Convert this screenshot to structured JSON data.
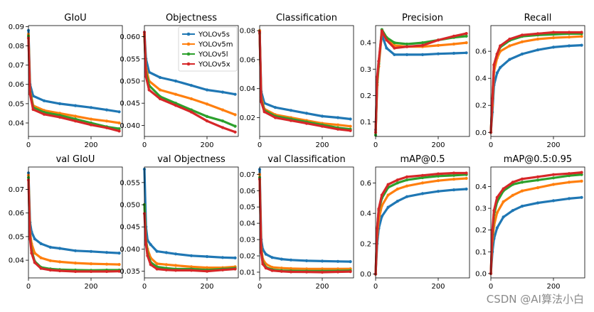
{
  "watermark": "CSDN @AI算法小白",
  "legend": {
    "placement": "upper-center",
    "panel": 1
  },
  "colors": {
    "YOLOv5s": "#1f77b4",
    "YOLOv5m": "#ff7f0e",
    "YOLOv5l": "#2ca02c",
    "YOLOv5x": "#d62728"
  },
  "chart_data": [
    {
      "type": "line",
      "title": "GIoU",
      "xlim": [
        0,
        300
      ],
      "ylim": [
        0.033,
        0.0905
      ],
      "xticks": [
        "0",
        "200"
      ],
      "yticks": [
        "0.04",
        "0.05",
        "0.06",
        "0.07",
        "0.08",
        "0.09"
      ],
      "x": [
        0,
        5,
        15,
        50,
        100,
        150,
        200,
        250,
        290
      ],
      "series": [
        {
          "name": "YOLOv5s",
          "values": [
            0.088,
            0.06,
            0.054,
            0.0515,
            0.05,
            0.049,
            0.048,
            0.0468,
            0.0458
          ]
        },
        {
          "name": "YOLOv5m",
          "values": [
            0.086,
            0.057,
            0.049,
            0.0465,
            0.045,
            0.0435,
            0.042,
            0.041,
            0.04
          ]
        },
        {
          "name": "YOLOv5l",
          "values": [
            0.085,
            0.056,
            0.048,
            0.0455,
            0.044,
            0.042,
            0.04,
            0.038,
            0.037
          ]
        },
        {
          "name": "YOLOv5x",
          "values": [
            0.084,
            0.055,
            0.047,
            0.0445,
            0.043,
            0.041,
            0.039,
            0.0375,
            0.0358
          ]
        }
      ]
    },
    {
      "type": "line",
      "title": "Objectness",
      "xlim": [
        0,
        300
      ],
      "ylim": [
        0.0375,
        0.0625
      ],
      "xticks": [
        "0",
        "200"
      ],
      "yticks": [
        "0.040",
        "0.045",
        "0.050",
        "0.055",
        "0.060"
      ],
      "x": [
        0,
        5,
        15,
        50,
        100,
        150,
        200,
        250,
        290
      ],
      "series": [
        {
          "name": "YOLOv5s",
          "values": [
            0.061,
            0.055,
            0.052,
            0.0508,
            0.05,
            0.049,
            0.048,
            0.0475,
            0.047
          ]
        },
        {
          "name": "YOLOv5m",
          "values": [
            0.0605,
            0.053,
            0.05,
            0.048,
            0.047,
            0.046,
            0.0448,
            0.0435,
            0.0424
          ]
        },
        {
          "name": "YOLOv5l",
          "values": [
            0.06,
            0.052,
            0.049,
            0.0465,
            0.045,
            0.0435,
            0.042,
            0.041,
            0.0398
          ]
        },
        {
          "name": "YOLOv5x",
          "values": [
            0.061,
            0.051,
            0.048,
            0.046,
            0.0445,
            0.043,
            0.041,
            0.0395,
            0.0385
          ]
        }
      ]
    },
    {
      "type": "line",
      "title": "Classification",
      "xlim": [
        0,
        300
      ],
      "ylim": [
        0.007,
        0.0835
      ],
      "xticks": [
        "0",
        "200"
      ],
      "yticks": [
        "0.02",
        "0.04",
        "0.06",
        "0.08"
      ],
      "x": [
        0,
        5,
        15,
        50,
        100,
        150,
        200,
        250,
        290
      ],
      "series": [
        {
          "name": "YOLOv5s",
          "values": [
            0.08,
            0.038,
            0.03,
            0.027,
            0.025,
            0.023,
            0.021,
            0.02,
            0.019
          ]
        },
        {
          "name": "YOLOv5m",
          "values": [
            0.08,
            0.034,
            0.026,
            0.022,
            0.02,
            0.018,
            0.016,
            0.015,
            0.014
          ]
        },
        {
          "name": "YOLOv5l",
          "values": [
            0.078,
            0.032,
            0.025,
            0.021,
            0.019,
            0.017,
            0.015,
            0.013,
            0.012
          ]
        },
        {
          "name": "YOLOv5x",
          "values": [
            0.079,
            0.031,
            0.024,
            0.02,
            0.018,
            0.016,
            0.014,
            0.012,
            0.011
          ]
        }
      ]
    },
    {
      "type": "line",
      "title": "Precision",
      "xlim": [
        0,
        300
      ],
      "ylim": [
        0.045,
        0.465
      ],
      "xticks": [
        "0",
        "200"
      ],
      "yticks": [
        "0.1",
        "0.2",
        "0.3",
        "0.4"
      ],
      "x": [
        0,
        5,
        10,
        20,
        35,
        60,
        100,
        150,
        200,
        250,
        290
      ],
      "series": [
        {
          "name": "YOLOv5s",
          "values": [
            0.07,
            0.26,
            0.33,
            0.43,
            0.38,
            0.355,
            0.355,
            0.355,
            0.358,
            0.36,
            0.362
          ]
        },
        {
          "name": "YOLOv5m",
          "values": [
            0.06,
            0.24,
            0.31,
            0.44,
            0.42,
            0.39,
            0.385,
            0.385,
            0.39,
            0.395,
            0.4
          ]
        },
        {
          "name": "YOLOv5l",
          "values": [
            0.05,
            0.25,
            0.32,
            0.45,
            0.42,
            0.4,
            0.395,
            0.4,
            0.41,
            0.42,
            0.425
          ]
        },
        {
          "name": "YOLOv5x",
          "values": [
            0.06,
            0.27,
            0.33,
            0.445,
            0.41,
            0.38,
            0.385,
            0.39,
            0.41,
            0.425,
            0.435
          ]
        }
      ]
    },
    {
      "type": "line",
      "title": "Recall",
      "xlim": [
        0,
        300
      ],
      "ylim": [
        -0.03,
        0.79
      ],
      "xticks": [
        "0",
        "200"
      ],
      "yticks": [
        "0.0",
        "0.2",
        "0.4",
        "0.6"
      ],
      "x": [
        0,
        5,
        10,
        20,
        30,
        60,
        100,
        150,
        200,
        250,
        290
      ],
      "series": [
        {
          "name": "YOLOv5s",
          "values": [
            0.0,
            0.15,
            0.35,
            0.44,
            0.48,
            0.54,
            0.58,
            0.61,
            0.63,
            0.64,
            0.645
          ]
        },
        {
          "name": "YOLOv5m",
          "values": [
            0.0,
            0.2,
            0.45,
            0.55,
            0.6,
            0.64,
            0.67,
            0.69,
            0.7,
            0.705,
            0.71
          ]
        },
        {
          "name": "YOLOv5l",
          "values": [
            0.0,
            0.25,
            0.5,
            0.58,
            0.63,
            0.68,
            0.71,
            0.72,
            0.725,
            0.73,
            0.73
          ]
        },
        {
          "name": "YOLOv5x",
          "values": [
            0.0,
            0.25,
            0.5,
            0.58,
            0.64,
            0.69,
            0.72,
            0.73,
            0.74,
            0.74,
            0.74
          ]
        }
      ]
    },
    {
      "type": "line",
      "title": "val GIoU",
      "xlim": [
        0,
        300
      ],
      "ylim": [
        0.0325,
        0.0795
      ],
      "xticks": [
        "0",
        "200"
      ],
      "yticks": [
        "0.04",
        "0.05",
        "0.06",
        "0.07"
      ],
      "x": [
        0,
        5,
        10,
        20,
        40,
        70,
        100,
        150,
        200,
        250,
        290
      ],
      "series": [
        {
          "name": "YOLOv5s",
          "values": [
            0.077,
            0.056,
            0.052,
            0.049,
            0.047,
            0.0455,
            0.045,
            0.044,
            0.0437,
            0.0433,
            0.043
          ]
        },
        {
          "name": "YOLOv5m",
          "values": [
            0.076,
            0.052,
            0.047,
            0.043,
            0.041,
            0.0398,
            0.0393,
            0.0388,
            0.0385,
            0.0383,
            0.0382
          ]
        },
        {
          "name": "YOLOv5l",
          "values": [
            0.075,
            0.05,
            0.044,
            0.0395,
            0.037,
            0.0363,
            0.036,
            0.0358,
            0.0357,
            0.0358,
            0.0358
          ]
        },
        {
          "name": "YOLOv5x",
          "values": [
            0.074,
            0.049,
            0.043,
            0.039,
            0.0365,
            0.0358,
            0.0355,
            0.0352,
            0.0352,
            0.0352,
            0.0353
          ]
        }
      ]
    },
    {
      "type": "line",
      "title": "val Objectness",
      "xlim": [
        0,
        300
      ],
      "ylim": [
        0.0335,
        0.0585
      ],
      "xticks": [
        "0",
        "200"
      ],
      "yticks": [
        "0.035",
        "0.040",
        "0.045",
        "0.050",
        "0.055"
      ],
      "x": [
        0,
        5,
        10,
        20,
        40,
        70,
        100,
        150,
        200,
        250,
        290
      ],
      "series": [
        {
          "name": "YOLOv5s",
          "values": [
            0.058,
            0.045,
            0.042,
            0.041,
            0.0395,
            0.0392,
            0.0389,
            0.0385,
            0.0383,
            0.0381,
            0.038
          ]
        },
        {
          "name": "YOLOv5m",
          "values": [
            0.05,
            0.042,
            0.04,
            0.038,
            0.0367,
            0.0365,
            0.0363,
            0.036,
            0.0358,
            0.0358,
            0.036
          ]
        },
        {
          "name": "YOLOv5l",
          "values": [
            0.05,
            0.042,
            0.039,
            0.037,
            0.036,
            0.0357,
            0.0355,
            0.0355,
            0.0353,
            0.0355,
            0.0357
          ]
        },
        {
          "name": "YOLOv5x",
          "values": [
            0.048,
            0.041,
            0.0385,
            0.0365,
            0.0355,
            0.0353,
            0.0352,
            0.0352,
            0.035,
            0.0353,
            0.0355
          ]
        }
      ]
    },
    {
      "type": "line",
      "title": "val Classification",
      "xlim": [
        0,
        300
      ],
      "ylim": [
        0.0065,
        0.0745
      ],
      "xticks": [
        "0",
        "200"
      ],
      "yticks": [
        "0.01",
        "0.02",
        "0.03",
        "0.04",
        "0.05",
        "0.06",
        "0.07"
      ],
      "x": [
        0,
        5,
        10,
        20,
        40,
        70,
        100,
        150,
        200,
        250,
        290
      ],
      "series": [
        {
          "name": "YOLOv5s",
          "values": [
            0.073,
            0.03,
            0.024,
            0.021,
            0.019,
            0.018,
            0.0175,
            0.017,
            0.0168,
            0.0166,
            0.0165
          ]
        },
        {
          "name": "YOLOv5m",
          "values": [
            0.07,
            0.025,
            0.018,
            0.015,
            0.013,
            0.0125,
            0.0122,
            0.012,
            0.012,
            0.012,
            0.0121
          ]
        },
        {
          "name": "YOLOv5l",
          "values": [
            0.068,
            0.023,
            0.016,
            0.013,
            0.0115,
            0.011,
            0.0108,
            0.0107,
            0.0107,
            0.0108,
            0.011
          ]
        },
        {
          "name": "YOLOv5x",
          "values": [
            0.067,
            0.022,
            0.015,
            0.0125,
            0.011,
            0.0105,
            0.0102,
            0.0101,
            0.01,
            0.0102,
            0.0104
          ]
        }
      ]
    },
    {
      "type": "line",
      "title": "mAP@0.5",
      "xlim": [
        0,
        300
      ],
      "ylim": [
        -0.025,
        0.705
      ],
      "xticks": [
        "0",
        "200"
      ],
      "yticks": [
        "0.0",
        "0.2",
        "0.4",
        "0.6"
      ],
      "x": [
        0,
        5,
        10,
        20,
        40,
        70,
        100,
        150,
        200,
        250,
        290
      ],
      "series": [
        {
          "name": "YOLOv5s",
          "values": [
            0.0,
            0.2,
            0.3,
            0.38,
            0.44,
            0.48,
            0.51,
            0.53,
            0.545,
            0.555,
            0.56
          ]
        },
        {
          "name": "YOLOv5m",
          "values": [
            0.0,
            0.25,
            0.36,
            0.45,
            0.52,
            0.56,
            0.58,
            0.6,
            0.615,
            0.625,
            0.63
          ]
        },
        {
          "name": "YOLOv5l",
          "values": [
            0.0,
            0.3,
            0.42,
            0.5,
            0.57,
            0.6,
            0.62,
            0.635,
            0.645,
            0.65,
            0.655
          ]
        },
        {
          "name": "YOLOv5x",
          "values": [
            0.0,
            0.3,
            0.43,
            0.52,
            0.59,
            0.62,
            0.64,
            0.65,
            0.66,
            0.665,
            0.665
          ]
        }
      ]
    },
    {
      "type": "line",
      "title": "mAP@0.5:0.95",
      "xlim": [
        0,
        300
      ],
      "ylim": [
        -0.02,
        0.49
      ],
      "xticks": [
        "0",
        "200"
      ],
      "yticks": [
        "0.0",
        "0.1",
        "0.2",
        "0.3",
        "0.4"
      ],
      "x": [
        0,
        5,
        10,
        20,
        40,
        70,
        100,
        150,
        200,
        250,
        290
      ],
      "series": [
        {
          "name": "YOLOv5s",
          "values": [
            0.0,
            0.1,
            0.16,
            0.21,
            0.26,
            0.29,
            0.31,
            0.325,
            0.335,
            0.345,
            0.35
          ]
        },
        {
          "name": "YOLOv5m",
          "values": [
            0.0,
            0.15,
            0.22,
            0.28,
            0.33,
            0.36,
            0.38,
            0.395,
            0.41,
            0.42,
            0.425
          ]
        },
        {
          "name": "YOLOv5l",
          "values": [
            0.0,
            0.18,
            0.27,
            0.33,
            0.38,
            0.41,
            0.42,
            0.43,
            0.44,
            0.45,
            0.455
          ]
        },
        {
          "name": "YOLOv5x",
          "values": [
            0.0,
            0.2,
            0.29,
            0.35,
            0.39,
            0.42,
            0.435,
            0.445,
            0.455,
            0.46,
            0.465
          ]
        }
      ]
    }
  ]
}
